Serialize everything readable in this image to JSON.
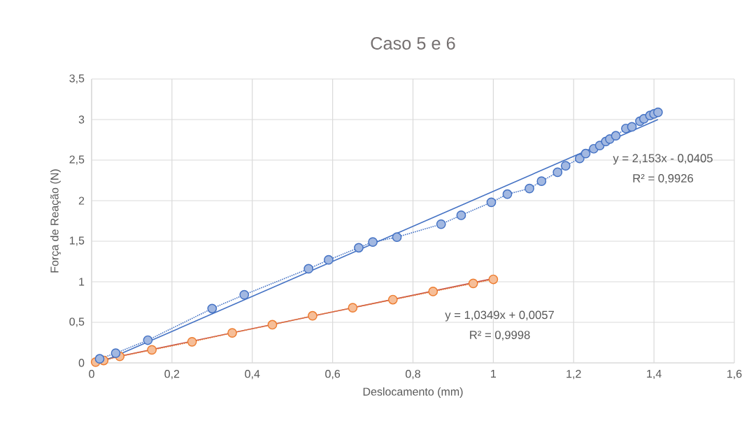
{
  "chart_data": {
    "type": "line",
    "title": "Caso 5 e 6",
    "xlabel": "Deslocamento (mm)",
    "ylabel": "Força de Reação (N)",
    "xlim": [
      0,
      1.6
    ],
    "ylim": [
      0,
      3.5
    ],
    "xticks": [
      0,
      {
        "value": 0.2,
        "label": "0,2"
      },
      {
        "value": 0.4,
        "label": "0,4"
      },
      {
        "value": 0.6,
        "label": "0,6"
      },
      {
        "value": 0.8,
        "label": "0,8"
      },
      1,
      {
        "value": 1.2,
        "label": "1,2"
      },
      {
        "value": 1.4,
        "label": "1,4"
      },
      {
        "value": 1.6,
        "label": "1,6"
      }
    ],
    "yticks": [
      0,
      {
        "value": 0.5,
        "label": "0,5"
      },
      1,
      {
        "value": 1.5,
        "label": "1,5"
      },
      2,
      {
        "value": 2.5,
        "label": "2,5"
      },
      3,
      {
        "value": 3.5,
        "label": "3,5"
      }
    ],
    "grid": true,
    "legend": false,
    "marker": "circle",
    "series": [
      {
        "line_style": "dotted",
        "color": "#4472c4",
        "x": [
          0.02,
          0.06,
          0.14,
          0.3,
          0.38,
          0.54,
          0.59,
          0.665,
          0.7,
          0.76,
          0.87,
          0.92,
          0.995,
          1.035,
          1.09,
          1.12,
          1.16,
          1.18,
          1.215,
          1.23,
          1.25,
          1.265,
          1.28,
          1.29,
          1.305,
          1.33,
          1.345,
          1.365,
          1.375,
          1.39,
          1.4,
          1.41
        ],
        "values": [
          0.05,
          0.12,
          0.28,
          0.67,
          0.84,
          1.16,
          1.27,
          1.42,
          1.49,
          1.55,
          1.71,
          1.82,
          1.98,
          2.08,
          2.15,
          2.24,
          2.35,
          2.43,
          2.52,
          2.58,
          2.64,
          2.68,
          2.73,
          2.76,
          2.8,
          2.89,
          2.91,
          2.98,
          3.01,
          3.05,
          3.07,
          3.09
        ]
      },
      {
        "line_style": "dotted",
        "color": "#ed7d31",
        "x": [
          0.01,
          0.03,
          0.07,
          0.15,
          0.25,
          0.35,
          0.45,
          0.55,
          0.65,
          0.75,
          0.85,
          0.95,
          1.0
        ],
        "values": [
          0.01,
          0.03,
          0.08,
          0.16,
          0.26,
          0.37,
          0.47,
          0.58,
          0.68,
          0.78,
          0.88,
          0.98,
          1.03
        ]
      },
      {
        "line_style": "solid",
        "marker": "none",
        "color": "#4472c4",
        "x": [
          0.02,
          1.41
        ],
        "values": [
          0.0,
          3.0
        ]
      },
      {
        "line_style": "solid",
        "marker": "none",
        "color": "#c0504d",
        "x": [
          0.01,
          1.0
        ],
        "values": [
          0.02,
          1.04
        ]
      }
    ],
    "annotations": [
      "y = 2,153x - 0,0405",
      "R² = 0,9926",
      "y = 1,0349x + 0,0057",
      "R² = 0,9998"
    ]
  }
}
